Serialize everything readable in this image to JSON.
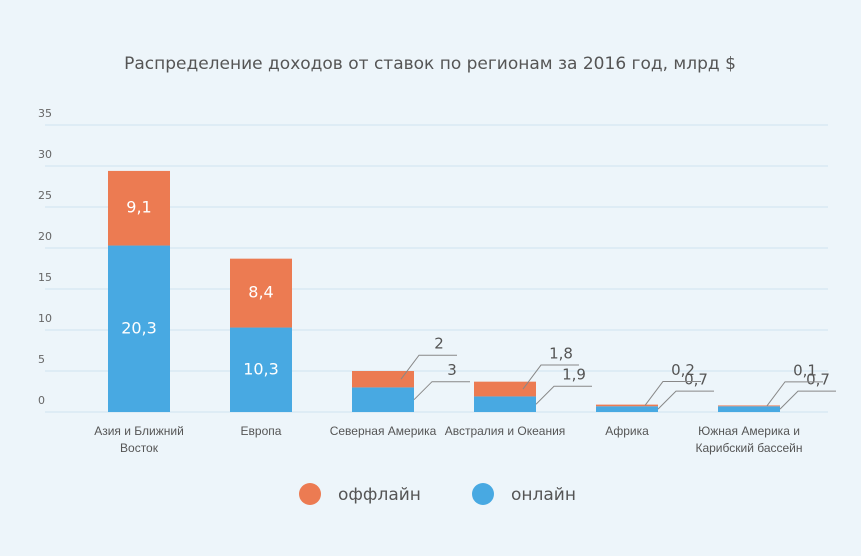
{
  "chart_data": {
    "type": "bar",
    "stacked": true,
    "title": "Распределение доходов от ставок по регионам за 2016 год, млрд $",
    "categories": [
      "Азия и Ближний Восток",
      "Европа",
      "Северная Америка",
      "Австралия и Океания",
      "Африка",
      "Южная Америка и Карибский бассейн"
    ],
    "series": [
      {
        "name": "онлайн",
        "color": "#48a9e2",
        "values": [
          20.3,
          10.3,
          3,
          1.9,
          0.7,
          0.7
        ],
        "value_labels": [
          "20,3",
          "10,3",
          "3",
          "1,9",
          "0,7",
          "0,7"
        ]
      },
      {
        "name": "оффлайн",
        "color": "#ec7b52",
        "values": [
          9.1,
          8.4,
          2,
          1.8,
          0.2,
          0.1
        ],
        "value_labels": [
          "9,1",
          "8,4",
          "2",
          "1,8",
          "0,2",
          "0,1"
        ]
      }
    ],
    "ylim": [
      0,
      35
    ],
    "yticks": [
      0,
      5,
      10,
      15,
      20,
      25,
      30,
      35
    ],
    "grid": true
  }
}
